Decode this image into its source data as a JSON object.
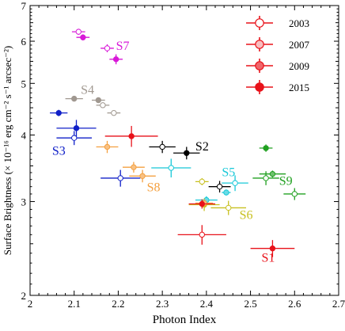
{
  "chart_data": {
    "type": "scatter",
    "title": "",
    "xlabel": "Photon Index",
    "ylabel": "Surface Brightness (× 10⁻¹⁶ erg cm⁻² s⁻¹ arcsec⁻²)",
    "xlim": [
      2.0,
      2.7
    ],
    "ylim": [
      2,
      7
    ],
    "yscale": "log",
    "xticks": [
      "2",
      "2.1",
      "2.2",
      "2.3",
      "2.4",
      "2.5",
      "2.6",
      "2.7"
    ],
    "xtick_values": [
      2.0,
      2.1,
      2.2,
      2.3,
      2.4,
      2.5,
      2.6,
      2.7
    ],
    "yticks": [
      "2",
      "3",
      "4",
      "5",
      "6",
      "7"
    ],
    "ytick_values": [
      2,
      3,
      4,
      5,
      6,
      7
    ],
    "legend": {
      "position": "top-right",
      "entries": [
        {
          "label": "2003",
          "style": "open"
        },
        {
          "label": "2007",
          "style": "light-fill"
        },
        {
          "label": "2009",
          "style": "medium-fill"
        },
        {
          "label": "2015",
          "style": "filled"
        }
      ]
    },
    "legend_color": "#e8121a",
    "regions": [
      {
        "label": "S1",
        "color": "#e8121a",
        "points": [
          {
            "epoch": "2003",
            "x": 2.39,
            "y": 2.6,
            "xerr": 0.055,
            "yerr": 0.11
          },
          {
            "epoch": "2015",
            "x": 2.55,
            "y": 2.45,
            "xerr": 0.05,
            "yerr": 0.09
          }
        ]
      },
      {
        "label": "S2",
        "color": "#000000",
        "points": [
          {
            "epoch": "2003",
            "x": 2.3,
            "y": 3.8,
            "xerr": 0.03,
            "yerr": 0.1
          },
          {
            "epoch": "2015",
            "x": 2.355,
            "y": 3.7,
            "xerr": 0.03,
            "yerr": 0.1
          },
          {
            "epoch": "2003",
            "x": 2.43,
            "y": 3.2,
            "xerr": 0.025,
            "yerr": 0.08
          }
        ]
      },
      {
        "label": "S3",
        "color": "#1020c8",
        "points": [
          {
            "epoch": "2015",
            "x": 2.065,
            "y": 4.4,
            "xerr": 0.02,
            "yerr": 0.06
          },
          {
            "epoch": "2015",
            "x": 2.105,
            "y": 4.12,
            "xerr": 0.045,
            "yerr": 0.15
          },
          {
            "epoch": "2003",
            "x": 2.1,
            "y": 3.95,
            "xerr": 0.04,
            "yerr": 0.12
          },
          {
            "epoch": "2003",
            "x": 2.205,
            "y": 3.32,
            "xerr": 0.045,
            "yerr": 0.12
          }
        ]
      },
      {
        "label": "S4",
        "color": "#a09890",
        "points": [
          {
            "epoch": "2015",
            "x": 2.1,
            "y": 4.68,
            "xerr": 0.02,
            "yerr": 0.05
          },
          {
            "epoch": "2015",
            "x": 2.155,
            "y": 4.65,
            "xerr": 0.015,
            "yerr": 0.05
          },
          {
            "epoch": "2003",
            "x": 2.165,
            "y": 4.55,
            "xerr": 0.015,
            "yerr": 0.05
          },
          {
            "epoch": "2003",
            "x": 2.19,
            "y": 4.4,
            "xerr": 0.015,
            "yerr": 0.05
          }
        ]
      },
      {
        "label": "S5",
        "color": "#18c8d8",
        "points": [
          {
            "epoch": "2003",
            "x": 2.32,
            "y": 3.47,
            "xerr": 0.045,
            "yerr": 0.14
          },
          {
            "epoch": "2003",
            "x": 2.465,
            "y": 3.25,
            "xerr": 0.03,
            "yerr": 0.11
          },
          {
            "epoch": "2009",
            "x": 2.445,
            "y": 3.12,
            "xerr": 0.01,
            "yerr": 0.04
          },
          {
            "epoch": "2009",
            "x": 2.4,
            "y": 3.02,
            "xerr": 0.025,
            "yerr": 0.05
          }
        ]
      },
      {
        "label": "S6",
        "color": "#c8c020",
        "points": [
          {
            "epoch": "2003",
            "x": 2.39,
            "y": 3.27,
            "xerr": 0.015,
            "yerr": 0.05
          },
          {
            "epoch": "2003",
            "x": 2.45,
            "y": 2.92,
            "xerr": 0.04,
            "yerr": 0.09
          },
          {
            "epoch": "2015",
            "x": 2.395,
            "y": 2.96,
            "xerr": 0.035,
            "yerr": 0.08
          }
        ]
      },
      {
        "label": "S7",
        "color": "#d818d8",
        "points": [
          {
            "epoch": "2003",
            "x": 2.11,
            "y": 6.25,
            "xerr": 0.015,
            "yerr": 0.08
          },
          {
            "epoch": "2015",
            "x": 2.12,
            "y": 6.1,
            "xerr": 0.015,
            "yerr": 0.08
          },
          {
            "epoch": "2003",
            "x": 2.175,
            "y": 5.82,
            "xerr": 0.015,
            "yerr": 0.1
          },
          {
            "epoch": "2015",
            "x": 2.195,
            "y": 5.55,
            "xerr": 0.015,
            "yerr": 0.12
          }
        ]
      },
      {
        "label": "S8",
        "color": "#f4a040",
        "points": [
          {
            "epoch": "2009",
            "x": 2.175,
            "y": 3.8,
            "xerr": 0.025,
            "yerr": 0.1
          },
          {
            "epoch": "2009",
            "x": 2.235,
            "y": 3.48,
            "xerr": 0.025,
            "yerr": 0.08
          },
          {
            "epoch": "2009",
            "x": 2.255,
            "y": 3.35,
            "xerr": 0.03,
            "yerr": 0.09
          },
          {
            "epoch": "2009",
            "x": 2.395,
            "y": 2.98,
            "xerr": 0.02,
            "yerr": 0.05
          }
        ]
      },
      {
        "label": "S9",
        "color": "#20a020",
        "points": [
          {
            "epoch": "2015",
            "x": 2.535,
            "y": 3.78,
            "xerr": 0.015,
            "yerr": 0.06
          },
          {
            "epoch": "2009",
            "x": 2.55,
            "y": 3.38,
            "xerr": 0.03,
            "yerr": 0.05
          },
          {
            "epoch": "2003",
            "x": 2.535,
            "y": 3.32,
            "xerr": 0.03,
            "yerr": 0.1
          },
          {
            "epoch": "2003",
            "x": 2.6,
            "y": 3.1,
            "xerr": 0.025,
            "yerr": 0.08
          }
        ]
      },
      {
        "label": "",
        "color": "#e8121a",
        "points": [
          {
            "epoch": "2015",
            "x": 2.23,
            "y": 3.98,
            "xerr": 0.06,
            "yerr": 0.18
          },
          {
            "epoch": "2015",
            "x": 2.39,
            "y": 2.97,
            "xerr": 0.03,
            "yerr": 0.06
          }
        ]
      }
    ],
    "region_labels": [
      {
        "text": "S1",
        "x": 2.525,
        "y": 2.36,
        "color": "#e8121a"
      },
      {
        "text": "S2",
        "x": 2.375,
        "y": 3.82,
        "color": "#000000"
      },
      {
        "text": "S3",
        "x": 2.05,
        "y": 3.75,
        "color": "#1020c8"
      },
      {
        "text": "S4",
        "x": 2.115,
        "y": 4.88,
        "color": "#a09890"
      },
      {
        "text": "S5",
        "x": 2.435,
        "y": 3.42,
        "color": "#18c8d8"
      },
      {
        "text": "S6",
        "x": 2.475,
        "y": 2.84,
        "color": "#c8c020"
      },
      {
        "text": "S7",
        "x": 2.195,
        "y": 5.9,
        "color": "#d818d8"
      },
      {
        "text": "S8",
        "x": 2.265,
        "y": 3.2,
        "color": "#f4a040"
      },
      {
        "text": "S9",
        "x": 2.565,
        "y": 3.29,
        "color": "#20a020"
      }
    ],
    "grid": false
  }
}
